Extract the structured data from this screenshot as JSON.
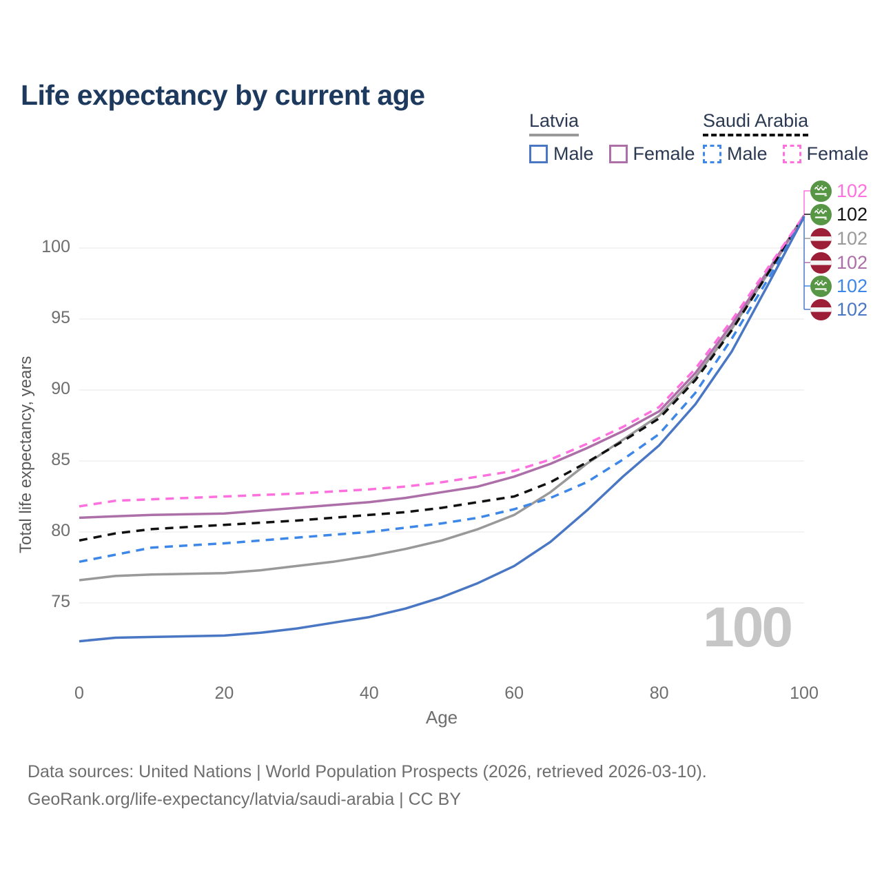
{
  "title": "Life expectancy by current age",
  "watermark": "100",
  "legend": {
    "groups": [
      {
        "label": "Latvia",
        "underline_style": "solid",
        "underline_color": "#999999",
        "items": [
          {
            "label": "Male",
            "color": "#4a77c4",
            "dashed": false
          },
          {
            "label": "Female",
            "color": "#ad6fa8",
            "dashed": false
          }
        ]
      },
      {
        "label": "Saudi Arabia",
        "underline_style": "dashed",
        "underline_color": "#111111",
        "items": [
          {
            "label": "Male",
            "color": "#3d87e8",
            "dashed": true
          },
          {
            "label": "Female",
            "color": "#ff70df",
            "dashed": true
          }
        ]
      }
    ]
  },
  "axes": {
    "x_label": "Age",
    "y_label": "Total life expectancy, years",
    "x_ticks": [
      0,
      20,
      40,
      60,
      80,
      100
    ],
    "y_ticks": [
      75,
      80,
      85,
      90,
      95,
      100
    ]
  },
  "chart_data": {
    "type": "line",
    "title": "Life expectancy by current age",
    "xlabel": "Age",
    "ylabel": "Total life expectancy, years",
    "xlim": [
      0,
      100
    ],
    "ylim": [
      71.5,
      103.5
    ],
    "grid": "horizontal",
    "legend_position": "top-right",
    "x": [
      0,
      5,
      10,
      15,
      20,
      25,
      30,
      35,
      40,
      45,
      50,
      55,
      60,
      65,
      70,
      75,
      80,
      85,
      90,
      95,
      100
    ],
    "series": [
      {
        "name": "Latvia (both sexes)",
        "country": "Latvia",
        "sex": "both",
        "color": "#999999",
        "dashed": false,
        "values": [
          76.6,
          76.9,
          77.0,
          77.05,
          77.1,
          77.3,
          77.6,
          77.9,
          78.3,
          78.8,
          79.4,
          80.2,
          81.2,
          82.8,
          84.8,
          86.5,
          88.2,
          90.9,
          94.3,
          98.2,
          102.3
        ],
        "end_label": "102"
      },
      {
        "name": "Latvia Female",
        "country": "Latvia",
        "sex": "female",
        "color": "#ad6fa8",
        "dashed": false,
        "values": [
          81.0,
          81.1,
          81.2,
          81.25,
          81.3,
          81.5,
          81.7,
          81.9,
          82.1,
          82.4,
          82.8,
          83.2,
          83.9,
          84.8,
          85.9,
          87.1,
          88.5,
          91.2,
          94.6,
          98.4,
          102.3
        ],
        "end_label": "102"
      },
      {
        "name": "Saudi Arabia (both sexes)",
        "country": "Saudi Arabia",
        "sex": "both",
        "color": "#111111",
        "dashed": true,
        "values": [
          79.4,
          79.9,
          80.2,
          80.35,
          80.5,
          80.65,
          80.8,
          81.0,
          81.2,
          81.4,
          81.7,
          82.1,
          82.5,
          83.5,
          84.9,
          86.4,
          88.0,
          90.7,
          94.2,
          98.2,
          102.3
        ],
        "end_label": "102"
      },
      {
        "name": "Saudi Arabia Male",
        "country": "Saudi Arabia",
        "sex": "male",
        "color": "#3d87e8",
        "dashed": true,
        "values": [
          77.9,
          78.4,
          78.9,
          79.05,
          79.2,
          79.4,
          79.6,
          79.8,
          80.0,
          80.3,
          80.6,
          81.0,
          81.6,
          82.4,
          83.5,
          85.1,
          86.9,
          89.8,
          93.6,
          97.8,
          102.2
        ],
        "end_label": "102"
      },
      {
        "name": "Saudi Arabia Female",
        "country": "Saudi Arabia",
        "sex": "female",
        "color": "#ff70df",
        "dashed": true,
        "values": [
          81.8,
          82.2,
          82.3,
          82.4,
          82.5,
          82.6,
          82.7,
          82.85,
          83.0,
          83.2,
          83.5,
          83.9,
          84.3,
          85.1,
          86.2,
          87.4,
          88.8,
          91.5,
          94.9,
          98.6,
          102.3
        ],
        "end_label": "102"
      },
      {
        "name": "Latvia Male",
        "country": "Latvia",
        "sex": "male",
        "color": "#4a77c4",
        "dashed": false,
        "values": [
          72.3,
          72.55,
          72.6,
          72.65,
          72.7,
          72.9,
          73.2,
          73.6,
          74.0,
          74.6,
          75.4,
          76.4,
          77.6,
          79.3,
          81.5,
          83.9,
          86.1,
          89.0,
          92.7,
          97.4,
          102.2
        ],
        "end_label": "102"
      }
    ]
  },
  "end_labels": [
    {
      "series": "Saudi Arabia Female",
      "flag": "saudi-arabia",
      "value": "102",
      "color": "#ff70df"
    },
    {
      "series": "Saudi Arabia (both sexes)",
      "flag": "saudi-arabia",
      "value": "102",
      "color": "#111111"
    },
    {
      "series": "Latvia (both sexes)",
      "flag": "latvia",
      "value": "102",
      "color": "#999999"
    },
    {
      "series": "Latvia Female",
      "flag": "latvia",
      "value": "102",
      "color": "#ad6fa8"
    },
    {
      "series": "Saudi Arabia Male",
      "flag": "saudi-arabia",
      "value": "102",
      "color": "#3d87e8"
    },
    {
      "series": "Latvia Male",
      "flag": "latvia",
      "value": "102",
      "color": "#4a77c4"
    }
  ],
  "flag_colors": {
    "saudi_green": "#579645",
    "latvia_red": "#9d1f37",
    "latvia_stripe": "#f4f4f4"
  },
  "footer": {
    "line1": "Data sources: United Nations | World Population Prospects (2026, retrieved 2026-03-10).",
    "line2": "GeoRank.org/life-expectancy/latvia/saudi-arabia | CC BY"
  }
}
